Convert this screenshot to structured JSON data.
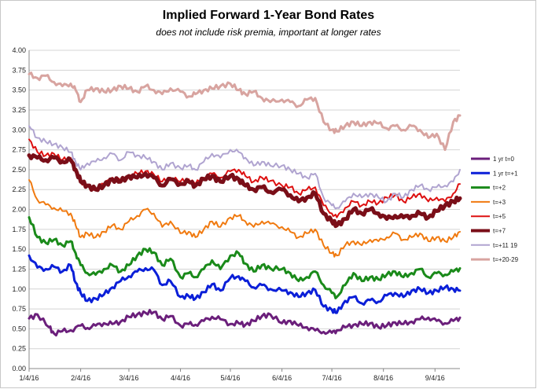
{
  "chart_data": {
    "type": "line",
    "title": "Implied Forward 1-Year Bond Rates",
    "subtitle": "does not include risk premia, important at longer rates",
    "xlabel": "",
    "ylabel": "",
    "x_ticks": [
      "1/4/16",
      "2/4/16",
      "3/4/16",
      "4/4/16",
      "5/4/16",
      "6/4/16",
      "7/4/16",
      "8/4/16",
      "9/4/16"
    ],
    "x_tick_days": [
      0,
      31,
      60,
      91,
      121,
      152,
      182,
      213,
      244
    ],
    "xlim_days": [
      0,
      259
    ],
    "ylim": [
      0,
      4
    ],
    "y_ticks": [
      "0.00",
      "0.25",
      "0.50",
      "0.75",
      "1.00",
      "1.25",
      "1.50",
      "1.75",
      "2.00",
      "2.25",
      "2.50",
      "2.75",
      "3.00",
      "3.25",
      "3.50",
      "3.75",
      "4.00"
    ],
    "grid": "horizontal",
    "legend_position": "right",
    "series": [
      {
        "name": "1 yr t=0",
        "color": "#6b1f7b",
        "width": 3,
        "x": [
          0,
          5,
          12,
          15,
          20,
          25,
          31,
          35,
          40,
          45,
          50,
          55,
          60,
          65,
          70,
          75,
          80,
          85,
          91,
          96,
          100,
          105,
          110,
          115,
          121,
          126,
          130,
          135,
          140,
          145,
          152,
          157,
          162,
          167,
          172,
          177,
          182,
          185,
          190,
          195,
          200,
          205,
          210,
          215,
          220,
          225,
          230,
          235,
          240,
          245,
          250,
          255,
          259
        ],
        "y": [
          0.63,
          0.68,
          0.52,
          0.44,
          0.47,
          0.48,
          0.54,
          0.51,
          0.54,
          0.57,
          0.56,
          0.59,
          0.65,
          0.68,
          0.7,
          0.71,
          0.62,
          0.66,
          0.54,
          0.56,
          0.55,
          0.6,
          0.65,
          0.62,
          0.56,
          0.57,
          0.55,
          0.6,
          0.66,
          0.68,
          0.57,
          0.6,
          0.54,
          0.52,
          0.48,
          0.46,
          0.45,
          0.48,
          0.52,
          0.55,
          0.56,
          0.57,
          0.52,
          0.54,
          0.58,
          0.56,
          0.59,
          0.62,
          0.64,
          0.6,
          0.57,
          0.6,
          0.64
        ]
      },
      {
        "name": "1 yr t=+1",
        "color": "#0b1fd8",
        "width": 3,
        "x": [
          0,
          5,
          10,
          15,
          20,
          25,
          28,
          31,
          35,
          40,
          45,
          50,
          55,
          60,
          65,
          70,
          75,
          80,
          85,
          91,
          96,
          100,
          105,
          110,
          115,
          121,
          126,
          130,
          135,
          140,
          145,
          152,
          157,
          162,
          167,
          172,
          177,
          182,
          185,
          190,
          195,
          200,
          205,
          210,
          215,
          220,
          225,
          230,
          235,
          240,
          245,
          250,
          255,
          259
        ],
        "y": [
          1.42,
          1.27,
          1.25,
          1.28,
          1.22,
          1.3,
          1.08,
          0.95,
          0.85,
          0.88,
          0.93,
          1.02,
          1.1,
          1.16,
          1.22,
          1.26,
          1.24,
          1.05,
          1.1,
          0.9,
          0.91,
          0.88,
          0.96,
          1.06,
          0.98,
          1.14,
          1.16,
          1.1,
          1.02,
          1.05,
          1.0,
          0.98,
          0.96,
          0.9,
          0.95,
          0.99,
          0.78,
          0.74,
          0.7,
          0.85,
          0.9,
          0.82,
          0.86,
          0.84,
          0.92,
          0.95,
          0.9,
          0.98,
          1.0,
          0.95,
          0.98,
          1.02,
          1.0,
          0.98
        ]
      },
      {
        "name": "t=+2",
        "color": "#1a8a1a",
        "width": 3,
        "x": [
          0,
          5,
          10,
          15,
          20,
          25,
          28,
          31,
          35,
          40,
          45,
          50,
          55,
          60,
          65,
          70,
          75,
          80,
          85,
          91,
          96,
          100,
          105,
          110,
          115,
          121,
          126,
          130,
          135,
          140,
          145,
          152,
          157,
          162,
          167,
          172,
          177,
          182,
          185,
          190,
          195,
          200,
          205,
          210,
          215,
          220,
          225,
          230,
          235,
          240,
          245,
          250,
          255,
          259
        ],
        "y": [
          1.9,
          1.65,
          1.58,
          1.62,
          1.55,
          1.6,
          1.45,
          1.3,
          1.2,
          1.18,
          1.25,
          1.3,
          1.22,
          1.3,
          1.42,
          1.5,
          1.46,
          1.3,
          1.38,
          1.15,
          1.2,
          1.15,
          1.25,
          1.36,
          1.25,
          1.42,
          1.45,
          1.32,
          1.22,
          1.3,
          1.26,
          1.25,
          1.2,
          1.1,
          1.15,
          1.22,
          1.05,
          0.95,
          0.9,
          1.05,
          1.2,
          1.1,
          1.15,
          1.12,
          1.18,
          1.22,
          1.15,
          1.2,
          1.25,
          1.15,
          1.2,
          1.18,
          1.22,
          1.26
        ]
      },
      {
        "name": "t=+3",
        "color": "#f07a10",
        "width": 2,
        "x": [
          0,
          5,
          10,
          15,
          20,
          25,
          28,
          31,
          35,
          40,
          45,
          50,
          55,
          60,
          65,
          70,
          75,
          80,
          85,
          91,
          96,
          100,
          105,
          110,
          115,
          121,
          126,
          130,
          135,
          140,
          145,
          152,
          157,
          162,
          167,
          172,
          177,
          182,
          185,
          190,
          195,
          200,
          205,
          210,
          215,
          220,
          225,
          230,
          235,
          240,
          245,
          250,
          255,
          259
        ],
        "y": [
          2.37,
          2.12,
          2.06,
          2.02,
          1.98,
          1.95,
          1.8,
          1.65,
          1.7,
          1.65,
          1.72,
          1.8,
          1.75,
          1.85,
          1.92,
          2.0,
          1.95,
          1.78,
          1.85,
          1.7,
          1.72,
          1.65,
          1.75,
          1.85,
          1.78,
          1.9,
          1.92,
          1.85,
          1.78,
          1.85,
          1.82,
          1.78,
          1.72,
          1.65,
          1.7,
          1.75,
          1.55,
          1.45,
          1.42,
          1.55,
          1.6,
          1.55,
          1.62,
          1.6,
          1.65,
          1.7,
          1.62,
          1.65,
          1.7,
          1.6,
          1.65,
          1.6,
          1.65,
          1.72
        ]
      },
      {
        "name": "t=+5",
        "color": "#dd1010",
        "width": 2,
        "x": [
          0,
          5,
          10,
          15,
          20,
          25,
          28,
          31,
          35,
          40,
          45,
          50,
          55,
          60,
          65,
          70,
          75,
          80,
          85,
          91,
          96,
          100,
          105,
          110,
          115,
          121,
          126,
          130,
          135,
          140,
          145,
          152,
          157,
          162,
          167,
          172,
          177,
          182,
          185,
          190,
          195,
          200,
          205,
          210,
          215,
          220,
          225,
          230,
          235,
          240,
          245,
          250,
          255,
          259
        ],
        "y": [
          2.88,
          2.72,
          2.68,
          2.7,
          2.62,
          2.65,
          2.5,
          2.35,
          2.3,
          2.25,
          2.32,
          2.4,
          2.35,
          2.42,
          2.45,
          2.48,
          2.44,
          2.35,
          2.4,
          2.35,
          2.38,
          2.32,
          2.4,
          2.45,
          2.4,
          2.48,
          2.5,
          2.42,
          2.35,
          2.4,
          2.36,
          2.3,
          2.28,
          2.2,
          2.25,
          2.28,
          2.05,
          1.95,
          1.9,
          2.02,
          2.1,
          2.05,
          2.1,
          2.08,
          2.15,
          2.18,
          2.1,
          2.15,
          2.2,
          2.1,
          2.15,
          2.1,
          2.2,
          2.32
        ]
      },
      {
        "name": "t=+7",
        "color": "#7a0e18",
        "width": 5,
        "x": [
          0,
          5,
          10,
          15,
          20,
          25,
          28,
          31,
          35,
          40,
          45,
          50,
          55,
          60,
          65,
          70,
          75,
          80,
          85,
          91,
          96,
          100,
          105,
          110,
          115,
          121,
          126,
          130,
          135,
          140,
          145,
          152,
          157,
          162,
          167,
          172,
          177,
          182,
          185,
          190,
          195,
          200,
          205,
          210,
          215,
          220,
          225,
          230,
          235,
          240,
          245,
          250,
          255,
          259
        ],
        "y": [
          2.68,
          2.65,
          2.62,
          2.65,
          2.6,
          2.62,
          2.5,
          2.35,
          2.3,
          2.25,
          2.3,
          2.38,
          2.35,
          2.42,
          2.4,
          2.45,
          2.4,
          2.3,
          2.38,
          2.32,
          2.35,
          2.3,
          2.38,
          2.42,
          2.35,
          2.42,
          2.38,
          2.3,
          2.25,
          2.28,
          2.22,
          2.25,
          2.18,
          2.1,
          2.15,
          2.2,
          1.95,
          1.85,
          1.8,
          1.88,
          2.0,
          1.95,
          2.0,
          1.95,
          1.88,
          1.92,
          1.9,
          1.92,
          1.95,
          1.9,
          1.98,
          2.05,
          2.1,
          2.14
        ]
      },
      {
        "name": "t=+11 19",
        "color": "#b0a4d0",
        "width": 2,
        "x": [
          0,
          5,
          10,
          15,
          20,
          25,
          28,
          31,
          35,
          40,
          45,
          50,
          55,
          60,
          65,
          70,
          75,
          80,
          85,
          91,
          96,
          100,
          105,
          110,
          115,
          121,
          126,
          130,
          135,
          140,
          145,
          152,
          157,
          162,
          167,
          172,
          177,
          182,
          185,
          190,
          195,
          200,
          205,
          210,
          215,
          220,
          225,
          230,
          235,
          240,
          245,
          250,
          255,
          259
        ],
        "y": [
          3.05,
          2.9,
          2.85,
          2.82,
          2.78,
          2.72,
          2.6,
          2.5,
          2.58,
          2.6,
          2.65,
          2.7,
          2.62,
          2.72,
          2.68,
          2.65,
          2.6,
          2.5,
          2.58,
          2.52,
          2.55,
          2.5,
          2.6,
          2.7,
          2.65,
          2.75,
          2.72,
          2.65,
          2.55,
          2.6,
          2.55,
          2.55,
          2.5,
          2.45,
          2.4,
          2.45,
          2.15,
          2.05,
          2.02,
          2.1,
          2.2,
          2.15,
          2.2,
          2.15,
          2.1,
          2.2,
          2.15,
          2.25,
          2.3,
          2.25,
          2.28,
          2.3,
          2.35,
          2.5
        ]
      },
      {
        "name": "t=+20-29",
        "color": "#d8a4a0",
        "width": 3,
        "x": [
          0,
          5,
          10,
          15,
          20,
          25,
          28,
          31,
          35,
          40,
          45,
          50,
          55,
          60,
          65,
          70,
          75,
          80,
          85,
          91,
          96,
          100,
          105,
          110,
          115,
          121,
          126,
          130,
          135,
          140,
          145,
          152,
          157,
          162,
          167,
          172,
          177,
          182,
          185,
          190,
          195,
          200,
          205,
          210,
          215,
          220,
          225,
          230,
          235,
          240,
          245,
          250,
          255,
          259
        ],
        "y": [
          3.7,
          3.65,
          3.68,
          3.6,
          3.55,
          3.58,
          3.5,
          3.35,
          3.5,
          3.52,
          3.48,
          3.5,
          3.55,
          3.52,
          3.48,
          3.55,
          3.5,
          3.45,
          3.52,
          3.48,
          3.42,
          3.45,
          3.5,
          3.52,
          3.55,
          3.58,
          3.5,
          3.45,
          3.48,
          3.4,
          3.35,
          3.38,
          3.35,
          3.3,
          3.38,
          3.4,
          3.1,
          3.0,
          2.98,
          3.05,
          3.1,
          3.05,
          3.1,
          3.08,
          3.02,
          3.05,
          3.0,
          3.05,
          3.0,
          2.9,
          2.95,
          2.75,
          3.1,
          3.18
        ]
      }
    ]
  }
}
